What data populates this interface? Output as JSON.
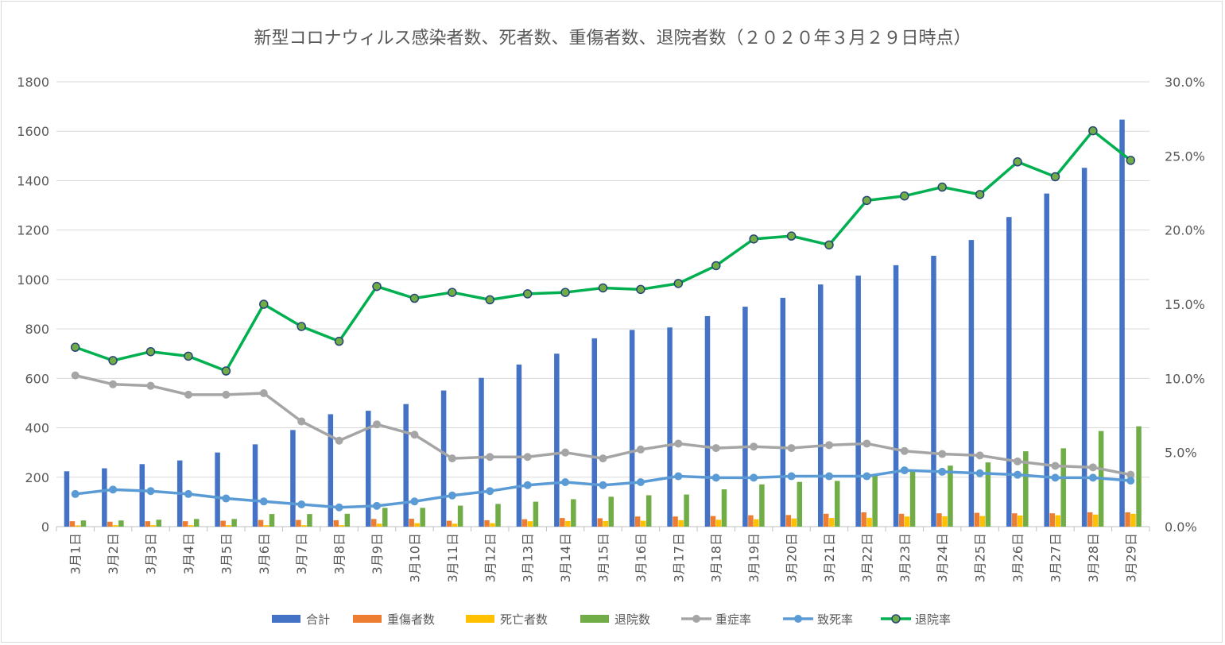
{
  "chart_data": {
    "type": "bar",
    "title": "新型コロナウィルス感染者数、死者数、重傷者数、退院者数（２０２０年３月２９日時点）",
    "categories": [
      "3月1日",
      "3月2日",
      "3月3日",
      "3月4日",
      "3月5日",
      "3月6日",
      "3月7日",
      "3月8日",
      "3月9日",
      "3月10日",
      "3月11日",
      "3月12日",
      "3月13日",
      "3月14日",
      "3月15日",
      "3月16日",
      "3月17日",
      "3月18日",
      "3月19日",
      "3月20日",
      "3月21日",
      "3月22日",
      "3月23日",
      "3月24日",
      "3月25日",
      "3月26日",
      "3月27日",
      "3月28日",
      "3月29日"
    ],
    "ylim": [
      0,
      1800
    ],
    "yticks": [
      0,
      200,
      400,
      600,
      800,
      1000,
      1200,
      1400,
      1600,
      1800
    ],
    "y2lim": [
      0,
      30
    ],
    "y2ticks": [
      "0.0%",
      "5.0%",
      "10.0%",
      "15.0%",
      "20.0%",
      "25.0%",
      "30.0%"
    ],
    "grid": true,
    "legend_position": "bottom",
    "bar_series": [
      {
        "name": "合計",
        "color": "#4472c4",
        "values": [
          224,
          236,
          253,
          268,
          300,
          333,
          391,
          455,
          469,
          496,
          551,
          602,
          656,
          700,
          762,
          796,
          806,
          852,
          890,
          926,
          980,
          1016,
          1058,
          1096,
          1160,
          1253,
          1348,
          1452,
          1647
        ]
      },
      {
        "name": "重傷者数",
        "color": "#ed7d31",
        "values": [
          22,
          20,
          22,
          22,
          24,
          27,
          27,
          26,
          31,
          32,
          24,
          26,
          30,
          35,
          34,
          41,
          41,
          43,
          46,
          47,
          52,
          58,
          52,
          54,
          56,
          54,
          54,
          58,
          58
        ]
      },
      {
        "name": "死亡者数",
        "color": "#ffc000",
        "values": [
          5,
          6,
          6,
          6,
          6,
          6,
          6,
          6,
          12,
          14,
          12,
          14,
          22,
          23,
          23,
          24,
          26,
          28,
          30,
          33,
          35,
          36,
          41,
          42,
          43,
          45,
          46,
          49,
          52
        ]
      },
      {
        "name": "退院数",
        "color": "#70ad47",
        "values": [
          25,
          25,
          28,
          31,
          31,
          51,
          51,
          52,
          76,
          76,
          85,
          92,
          101,
          111,
          121,
          127,
          130,
          151,
          171,
          181,
          185,
          212,
          228,
          247,
          260,
          305,
          317,
          387,
          406
        ]
      }
    ],
    "line_series": [
      {
        "name": "重症率",
        "color": "#a5a5a5",
        "marker": "circle",
        "values": [
          10.2,
          9.6,
          9.5,
          8.9,
          8.9,
          9.0,
          7.1,
          5.8,
          6.9,
          6.2,
          4.6,
          4.7,
          4.7,
          5.0,
          4.6,
          5.2,
          5.6,
          5.3,
          5.4,
          5.3,
          5.5,
          5.6,
          5.1,
          4.9,
          4.8,
          4.4,
          4.1,
          4.0,
          3.5
        ]
      },
      {
        "name": "致死率",
        "color": "#5b9bd5",
        "marker": "circle",
        "values": [
          2.2,
          2.5,
          2.4,
          2.2,
          1.9,
          1.7,
          1.5,
          1.3,
          1.4,
          1.7,
          2.1,
          2.4,
          2.8,
          3.0,
          2.8,
          3.0,
          3.4,
          3.3,
          3.3,
          3.4,
          3.4,
          3.4,
          3.8,
          3.7,
          3.6,
          3.5,
          3.3,
          3.3,
          3.1
        ]
      },
      {
        "name": "退院率",
        "color": "#00b050",
        "marker": "circle-outlined",
        "values": [
          12.1,
          11.2,
          11.8,
          11.5,
          10.5,
          15.0,
          13.5,
          12.5,
          16.2,
          15.4,
          15.8,
          15.3,
          15.7,
          15.8,
          16.1,
          16.0,
          16.4,
          17.6,
          19.4,
          19.6,
          19.0,
          22.0,
          22.3,
          22.9,
          22.4,
          24.6,
          23.6,
          26.7,
          24.7
        ]
      }
    ]
  }
}
